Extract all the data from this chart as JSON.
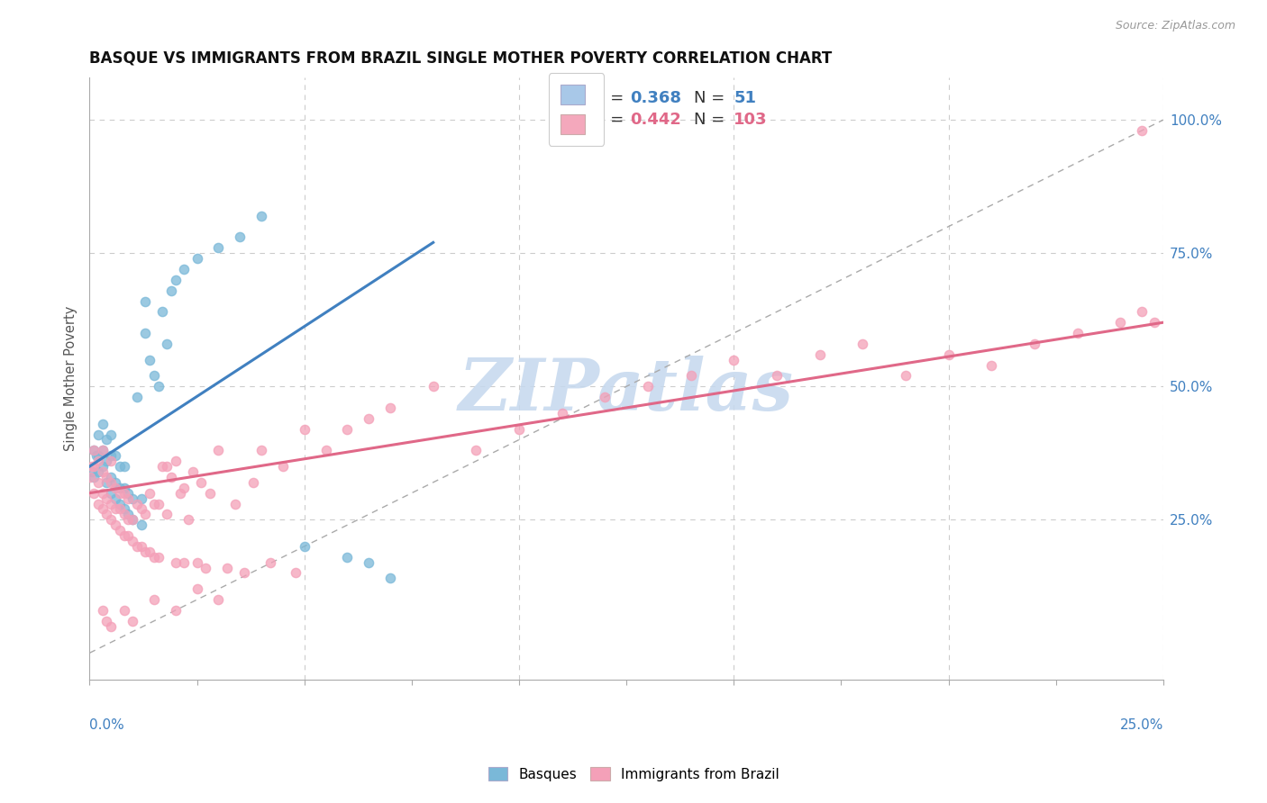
{
  "title": "BASQUE VS IMMIGRANTS FROM BRAZIL SINGLE MOTHER POVERTY CORRELATION CHART",
  "source": "Source: ZipAtlas.com",
  "ylabel": "Single Mother Poverty",
  "legend_basque": {
    "R": 0.368,
    "N": 51,
    "color": "#a8c8e8"
  },
  "legend_brazil": {
    "R": 0.442,
    "N": 103,
    "color": "#f4a8bc"
  },
  "basque_color": "#7ab8d8",
  "brazil_color": "#f4a0b8",
  "basque_line_color": "#4080c0",
  "brazil_line_color": "#e06888",
  "diagonal_color": "#aaaaaa",
  "watermark_color": "#c5d8ee",
  "background_color": "#ffffff",
  "xlim": [
    0.0,
    0.25
  ],
  "ylim": [
    -0.05,
    1.08
  ],
  "grid_color": "#cccccc",
  "right_tick_color": "#4080c0",
  "title_color": "#111111",
  "source_color": "#999999",
  "ylabel_color": "#555555",
  "basque_x": [
    0.0005,
    0.001,
    0.001,
    0.0015,
    0.002,
    0.002,
    0.002,
    0.003,
    0.003,
    0.003,
    0.004,
    0.004,
    0.004,
    0.005,
    0.005,
    0.005,
    0.005,
    0.006,
    0.006,
    0.006,
    0.007,
    0.007,
    0.007,
    0.008,
    0.008,
    0.008,
    0.009,
    0.009,
    0.01,
    0.01,
    0.011,
    0.012,
    0.012,
    0.013,
    0.013,
    0.014,
    0.015,
    0.016,
    0.017,
    0.018,
    0.019,
    0.02,
    0.022,
    0.025,
    0.03,
    0.035,
    0.04,
    0.05,
    0.06,
    0.065,
    0.07
  ],
  "basque_y": [
    0.34,
    0.33,
    0.38,
    0.37,
    0.34,
    0.37,
    0.41,
    0.35,
    0.38,
    0.43,
    0.32,
    0.36,
    0.4,
    0.3,
    0.33,
    0.37,
    0.41,
    0.29,
    0.32,
    0.37,
    0.28,
    0.31,
    0.35,
    0.27,
    0.31,
    0.35,
    0.26,
    0.3,
    0.25,
    0.29,
    0.48,
    0.24,
    0.29,
    0.6,
    0.66,
    0.55,
    0.52,
    0.5,
    0.64,
    0.58,
    0.68,
    0.7,
    0.72,
    0.74,
    0.76,
    0.78,
    0.82,
    0.2,
    0.18,
    0.17,
    0.14
  ],
  "brazil_x": [
    0.0002,
    0.0005,
    0.001,
    0.001,
    0.001,
    0.002,
    0.002,
    0.002,
    0.003,
    0.003,
    0.003,
    0.003,
    0.004,
    0.004,
    0.004,
    0.005,
    0.005,
    0.005,
    0.005,
    0.006,
    0.006,
    0.006,
    0.007,
    0.007,
    0.007,
    0.008,
    0.008,
    0.008,
    0.009,
    0.009,
    0.009,
    0.01,
    0.01,
    0.011,
    0.011,
    0.012,
    0.012,
    0.013,
    0.013,
    0.014,
    0.014,
    0.015,
    0.015,
    0.016,
    0.016,
    0.017,
    0.018,
    0.018,
    0.019,
    0.02,
    0.02,
    0.021,
    0.022,
    0.022,
    0.023,
    0.024,
    0.025,
    0.026,
    0.027,
    0.028,
    0.03,
    0.032,
    0.034,
    0.036,
    0.038,
    0.04,
    0.042,
    0.045,
    0.048,
    0.05,
    0.055,
    0.06,
    0.065,
    0.07,
    0.08,
    0.09,
    0.1,
    0.11,
    0.12,
    0.13,
    0.14,
    0.15,
    0.16,
    0.17,
    0.18,
    0.19,
    0.2,
    0.21,
    0.22,
    0.23,
    0.24,
    0.245,
    0.248,
    0.003,
    0.004,
    0.005,
    0.008,
    0.01,
    0.015,
    0.02,
    0.025,
    0.03,
    0.245
  ],
  "brazil_y": [
    0.33,
    0.35,
    0.3,
    0.35,
    0.38,
    0.28,
    0.32,
    0.36,
    0.27,
    0.3,
    0.34,
    0.38,
    0.26,
    0.29,
    0.33,
    0.25,
    0.28,
    0.32,
    0.36,
    0.24,
    0.27,
    0.31,
    0.23,
    0.27,
    0.3,
    0.22,
    0.26,
    0.3,
    0.22,
    0.25,
    0.29,
    0.21,
    0.25,
    0.2,
    0.28,
    0.2,
    0.27,
    0.19,
    0.26,
    0.19,
    0.3,
    0.18,
    0.28,
    0.18,
    0.28,
    0.35,
    0.26,
    0.35,
    0.33,
    0.17,
    0.36,
    0.3,
    0.17,
    0.31,
    0.25,
    0.34,
    0.17,
    0.32,
    0.16,
    0.3,
    0.38,
    0.16,
    0.28,
    0.15,
    0.32,
    0.38,
    0.17,
    0.35,
    0.15,
    0.42,
    0.38,
    0.42,
    0.44,
    0.46,
    0.5,
    0.38,
    0.42,
    0.45,
    0.48,
    0.5,
    0.52,
    0.55,
    0.52,
    0.56,
    0.58,
    0.52,
    0.56,
    0.54,
    0.58,
    0.6,
    0.62,
    0.64,
    0.62,
    0.08,
    0.06,
    0.05,
    0.08,
    0.06,
    0.1,
    0.08,
    0.12,
    0.1,
    0.98
  ],
  "basque_line_x": [
    0.0,
    0.08
  ],
  "basque_line_y": [
    0.35,
    0.77
  ],
  "brazil_line_x": [
    0.0,
    0.25
  ],
  "brazil_line_y": [
    0.3,
    0.62
  ]
}
